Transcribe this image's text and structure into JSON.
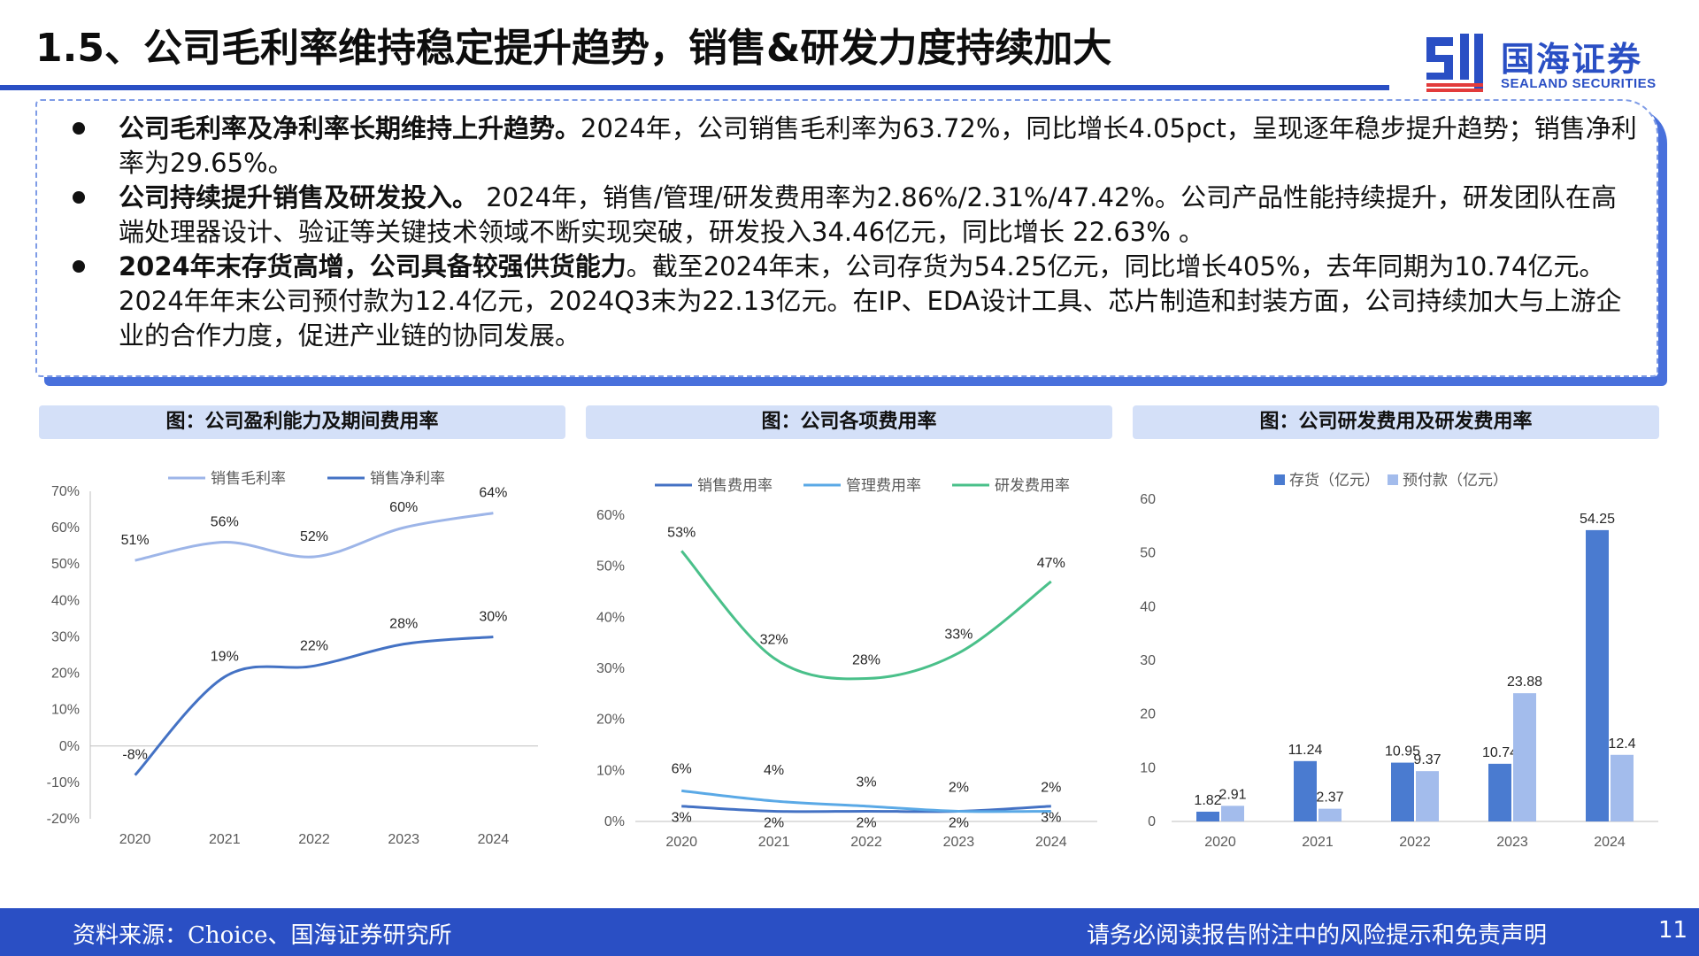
{
  "header": {
    "title": "1.5、公司毛利率维持稳定提升趋势，销售&研发力度持续加大"
  },
  "logo": {
    "cn": "国海证券",
    "en": "SEALAND SECURITIES"
  },
  "summary": {
    "bullets": [
      {
        "bold": "公司毛利率及净利率长期维持上升趋势。",
        "text": "2024年，公司销售毛利率为63.72%，同比增长4.05pct，呈现逐年稳步提升趋势；销售净利率为29.65%。"
      },
      {
        "bold": "公司持续提升销售及研发投入。",
        "text": " 2024年，销售/管理/研发费用率为2.86%/2.31%/47.42%。公司产品性能持续提升，研发团队在高端处理器设计、验证等关键技术领域不断实现突破，研发投入34.46亿元，同比增长 22.63% 。"
      },
      {
        "bold": "2024年末存货高增，公司具备较强供货能力",
        "text": "。截至2024年末，公司存货为54.25亿元，同比增长405%，去年同期为10.74亿元。2024年年末公司预付款为12.4亿元，2024Q3末为22.13亿元。在IP、EDA设计工具、芯片制造和封装方面，公司持续加大与上游企业的合作力度，促进产业链的协同发展。"
      }
    ]
  },
  "panels": {
    "p1_title": "图：公司盈利能力及期间费用率",
    "p2_title": "图：公司各项费用率",
    "p3_title": "图：公司研发费用及研发费用率"
  },
  "colors": {
    "brand": "#2a4fc4",
    "panel_bg": "#d4e0f8",
    "gross": "#9db5e8",
    "net": "#4472c4",
    "sales": "#4472c4",
    "admin": "#5aa9e6",
    "rd": "#4ac08a",
    "inventory": "#4a7bd0",
    "prepay": "#a3bcec"
  },
  "chart_data": [
    {
      "type": "line",
      "x": [
        "2020",
        "2021",
        "2022",
        "2023",
        "2024"
      ],
      "ylim": [
        -20,
        70
      ],
      "yticks": [
        "70%",
        "60%",
        "50%",
        "40%",
        "30%",
        "20%",
        "10%",
        "0%",
        "-10%",
        "-20%"
      ],
      "series": [
        {
          "name": "销售毛利率",
          "values": [
            51,
            56,
            52,
            60,
            64
          ],
          "labels": [
            "51%",
            "56%",
            "52%",
            "60%",
            "64%"
          ]
        },
        {
          "name": "销售净利率",
          "values": [
            -8,
            19,
            22,
            28,
            30
          ],
          "labels": [
            "-8%",
            "19%",
            "22%",
            "28%",
            "30%"
          ]
        }
      ]
    },
    {
      "type": "line",
      "x": [
        "2020",
        "2021",
        "2022",
        "2023",
        "2024"
      ],
      "ylim": [
        0,
        60
      ],
      "yticks": [
        "60%",
        "50%",
        "40%",
        "30%",
        "20%",
        "10%",
        "0%"
      ],
      "series": [
        {
          "name": "销售费用率",
          "values": [
            3,
            2,
            2,
            2,
            3
          ],
          "labels": [
            "3%",
            "2%",
            "2%",
            "2%",
            "3%"
          ]
        },
        {
          "name": "管理费用率",
          "values": [
            6,
            4,
            3,
            2,
            2
          ],
          "labels": [
            "6%",
            "4%",
            "3%",
            "2%",
            "2%"
          ]
        },
        {
          "name": "研发费用率",
          "values": [
            53,
            32,
            28,
            33,
            47
          ],
          "labels": [
            "53%",
            "32%",
            "28%",
            "33%",
            "47%"
          ]
        }
      ]
    },
    {
      "type": "bar",
      "categories": [
        "2020",
        "2021",
        "2022",
        "2023",
        "2024"
      ],
      "ylim": [
        0,
        60
      ],
      "yticks": [
        "60",
        "50",
        "40",
        "30",
        "20",
        "10",
        "0"
      ],
      "series": [
        {
          "name": "存货（亿元）",
          "values": [
            1.82,
            11.24,
            10.95,
            10.74,
            54.25
          ],
          "labels": [
            "1.82",
            "11.24",
            "10.95",
            "10.74",
            "54.25"
          ]
        },
        {
          "name": "预付款（亿元）",
          "values": [
            2.91,
            2.37,
            9.37,
            23.88,
            12.4
          ],
          "labels": [
            "2.91",
            "2.37",
            "9.37",
            "23.88",
            "12.4"
          ]
        }
      ]
    }
  ],
  "footer": {
    "source": "资料来源：Choice、国海证券研究所",
    "disclaimer": "请务必阅读报告附注中的风险提示和免责声明",
    "page": "11"
  }
}
